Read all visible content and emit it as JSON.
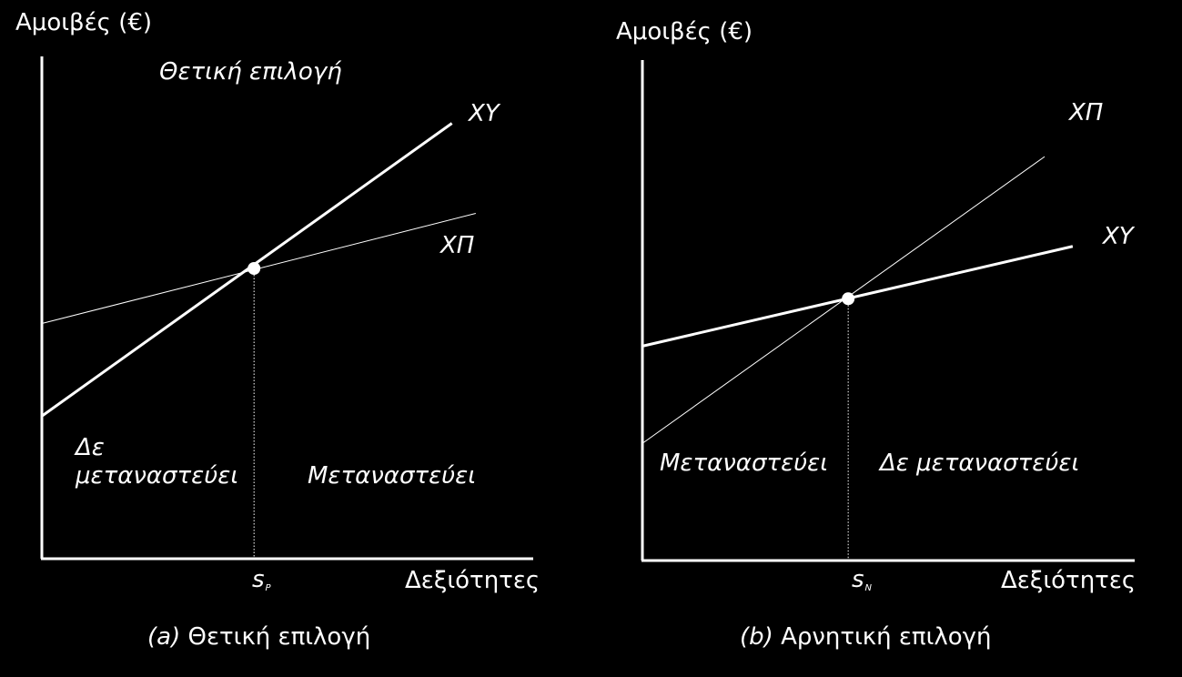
{
  "colors": {
    "background": "#000000",
    "foreground": "#ffffff"
  },
  "chart_data": [
    {
      "type": "line",
      "panel": "a",
      "ylabel": "Αμοιβές (€)",
      "xlabel": "Δεξιότητες",
      "title": "Θετική επιλογή",
      "caption_letter": "(a)",
      "caption_text": "Θετική επιλογή",
      "xlim": [
        0,
        10
      ],
      "ylim": [
        0,
        10
      ],
      "series": [
        {
          "name": "ΧΥ",
          "style": "thick",
          "x": [
            0,
            8.6
          ],
          "y": [
            2.85,
            8.7
          ]
        },
        {
          "name": "ΧΠ",
          "style": "thin",
          "x": [
            0,
            9.1
          ],
          "y": [
            4.7,
            6.9
          ]
        }
      ],
      "intersection": {
        "label": "s",
        "subscript": "P",
        "x": 4.45,
        "y": 5.8
      },
      "region_left": [
        "Δε",
        "μεταναστεύει"
      ],
      "region_right": "Μεταναστεύει"
    },
    {
      "type": "line",
      "panel": "b",
      "ylabel": "Αμοιβές (€)",
      "xlabel": "Δεξιότητες",
      "title": "Αρνητική επιλογή",
      "caption_letter": "(b)",
      "caption_text": "Αρνητική επιλογή",
      "xlim": [
        0,
        10
      ],
      "ylim": [
        0,
        10
      ],
      "series": [
        {
          "name": "ΧΠ",
          "style": "thin",
          "x": [
            0,
            8.6
          ],
          "y": [
            2.35,
            8.1
          ]
        },
        {
          "name": "ΧΥ",
          "style": "thick",
          "x": [
            0,
            9.2
          ],
          "y": [
            4.3,
            6.3
          ]
        }
      ],
      "intersection": {
        "label": "s",
        "subscript": "N",
        "x": 4.4,
        "y": 5.25
      },
      "region_left": "Μεταναστεύει",
      "region_right": "Δε μεταναστεύει"
    }
  ]
}
